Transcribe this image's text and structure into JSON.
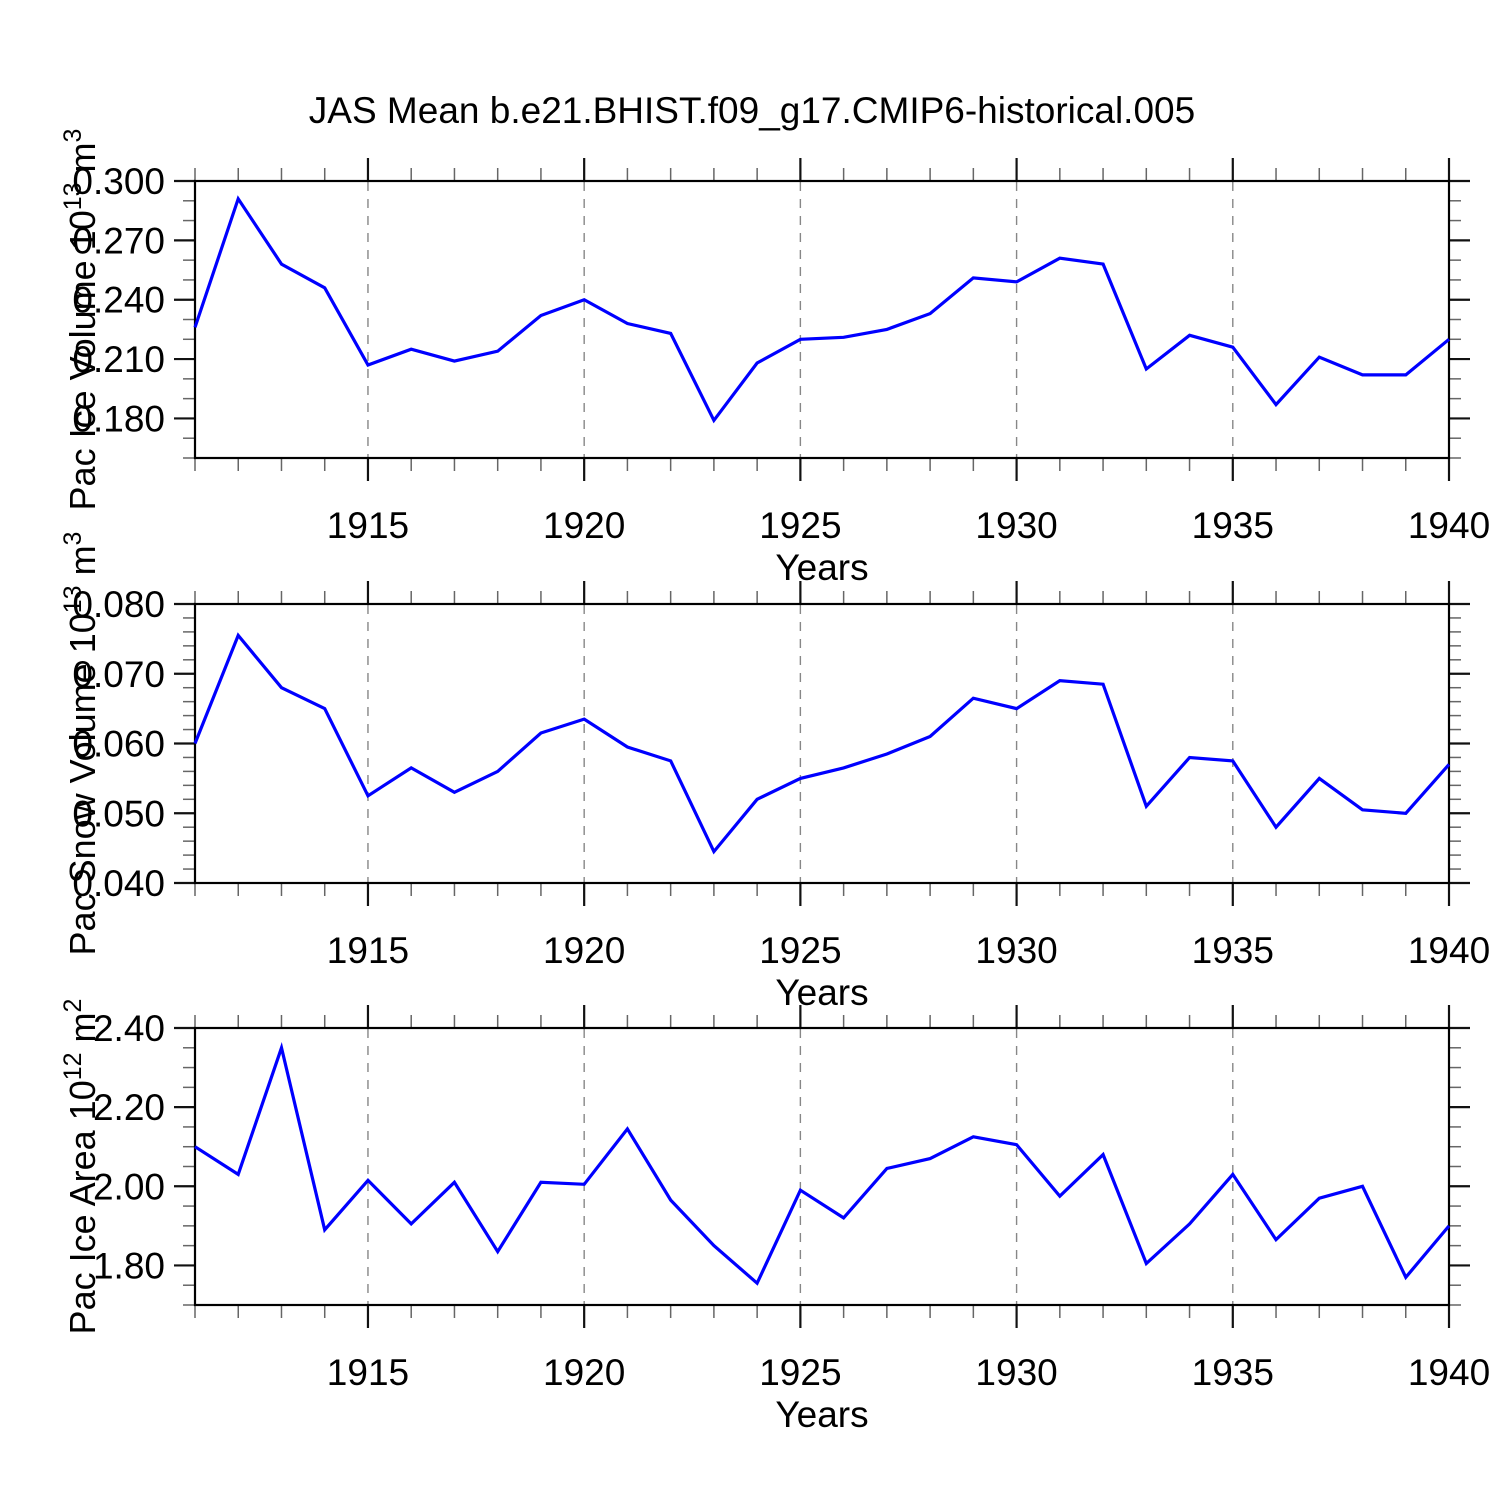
{
  "title": "JAS Mean b.e21.BHIST.f09_g17.CMIP6-historical.005",
  "figure": {
    "background": "#ffffff",
    "line_color": "#0000ff",
    "grid_color": "#878787",
    "frame_color": "#000000",
    "tick_major_color": "#111111",
    "tick_minor_color": "#666666"
  },
  "chart_data": [
    {
      "type": "line",
      "ylabel": "Pac Ice Volume 10^13 m^3",
      "ylabel_parts": [
        {
          "text": "Pac Ice Volume 10",
          "sup": false
        },
        {
          "text": "13",
          "sup": true
        },
        {
          "text": " m",
          "sup": false
        },
        {
          "text": "3",
          "sup": true
        }
      ],
      "xlabel": "Years",
      "x": [
        1911,
        1912,
        1913,
        1914,
        1915,
        1916,
        1917,
        1918,
        1919,
        1920,
        1921,
        1922,
        1923,
        1924,
        1925,
        1926,
        1927,
        1928,
        1929,
        1930,
        1931,
        1932,
        1933,
        1934,
        1935,
        1936,
        1937,
        1938,
        1939,
        1940
      ],
      "values": [
        0.226,
        0.291,
        0.258,
        0.246,
        0.207,
        0.215,
        0.209,
        0.214,
        0.232,
        0.24,
        0.228,
        0.223,
        0.179,
        0.208,
        0.22,
        0.221,
        0.225,
        0.233,
        0.251,
        0.249,
        0.261,
        0.258,
        0.205,
        0.222,
        0.216,
        0.187,
        0.211,
        0.202,
        0.202,
        0.22
      ],
      "xlim": [
        1911,
        1940
      ],
      "ylim": [
        0.16,
        0.3
      ],
      "yticks": [
        {
          "v": 0.3,
          "label": "0.300"
        },
        {
          "v": 0.27,
          "label": "0.270"
        },
        {
          "v": 0.24,
          "label": "0.240"
        },
        {
          "v": 0.21,
          "label": "0.210"
        },
        {
          "v": 0.18,
          "label": "0.180"
        }
      ],
      "yminor_step": 0.01,
      "xticks": [
        {
          "v": 1915,
          "label": "1915"
        },
        {
          "v": 1920,
          "label": "1920"
        },
        {
          "v": 1925,
          "label": "1925"
        },
        {
          "v": 1930,
          "label": "1930"
        },
        {
          "v": 1935,
          "label": "1935"
        },
        {
          "v": 1940,
          "label": "1940"
        }
      ],
      "xminor_step": 1,
      "grid_years": [
        1915,
        1920,
        1925,
        1930,
        1935
      ],
      "grid": "vertical-dashed",
      "legend": "none"
    },
    {
      "type": "line",
      "ylabel": "Pac Snow Volume 10^13 m^3",
      "ylabel_parts": [
        {
          "text": "Pac Snow Volume 10",
          "sup": false
        },
        {
          "text": "13",
          "sup": true
        },
        {
          "text": " m",
          "sup": false
        },
        {
          "text": "3",
          "sup": true
        }
      ],
      "xlabel": "Years",
      "x": [
        1911,
        1912,
        1913,
        1914,
        1915,
        1916,
        1917,
        1918,
        1919,
        1920,
        1921,
        1922,
        1923,
        1924,
        1925,
        1926,
        1927,
        1928,
        1929,
        1930,
        1931,
        1932,
        1933,
        1934,
        1935,
        1936,
        1937,
        1938,
        1939,
        1940
      ],
      "values": [
        0.06,
        0.0755,
        0.068,
        0.065,
        0.0525,
        0.0565,
        0.053,
        0.056,
        0.0615,
        0.0635,
        0.0595,
        0.0575,
        0.0445,
        0.052,
        0.055,
        0.0565,
        0.0585,
        0.061,
        0.0665,
        0.065,
        0.069,
        0.0685,
        0.051,
        0.058,
        0.0575,
        0.048,
        0.055,
        0.0505,
        0.05,
        0.057
      ],
      "xlim": [
        1911,
        1940
      ],
      "ylim": [
        0.04,
        0.08
      ],
      "yticks": [
        {
          "v": 0.08,
          "label": "0.080"
        },
        {
          "v": 0.07,
          "label": "0.070"
        },
        {
          "v": 0.06,
          "label": "0.060"
        },
        {
          "v": 0.05,
          "label": "0.050"
        },
        {
          "v": 0.04,
          "label": "0.040"
        }
      ],
      "yminor_step": 0.002,
      "xticks": [
        {
          "v": 1915,
          "label": "1915"
        },
        {
          "v": 1920,
          "label": "1920"
        },
        {
          "v": 1925,
          "label": "1925"
        },
        {
          "v": 1930,
          "label": "1930"
        },
        {
          "v": 1935,
          "label": "1935"
        },
        {
          "v": 1940,
          "label": "1940"
        }
      ],
      "xminor_step": 1,
      "grid_years": [
        1915,
        1920,
        1925,
        1930,
        1935
      ],
      "grid": "vertical-dashed",
      "legend": "none"
    },
    {
      "type": "line",
      "ylabel": "Pac Ice Area 10^12 m^2",
      "ylabel_parts": [
        {
          "text": "Pac Ice Area 10",
          "sup": false
        },
        {
          "text": "12",
          "sup": true
        },
        {
          "text": " m",
          "sup": false
        },
        {
          "text": "2",
          "sup": true
        }
      ],
      "xlabel": "Years",
      "x": [
        1911,
        1912,
        1913,
        1914,
        1915,
        1916,
        1917,
        1918,
        1919,
        1920,
        1921,
        1922,
        1923,
        1924,
        1925,
        1926,
        1927,
        1928,
        1929,
        1930,
        1931,
        1932,
        1933,
        1934,
        1935,
        1936,
        1937,
        1938,
        1939,
        1940
      ],
      "values": [
        2.1,
        2.03,
        2.35,
        1.89,
        2.015,
        1.905,
        2.01,
        1.835,
        2.01,
        2.005,
        2.145,
        1.965,
        1.85,
        1.755,
        1.99,
        1.92,
        2.045,
        2.07,
        2.125,
        2.105,
        1.975,
        2.08,
        1.805,
        1.905,
        2.03,
        1.865,
        1.97,
        2.0,
        1.77,
        1.9
      ],
      "xlim": [
        1911,
        1940
      ],
      "ylim": [
        1.7,
        2.4
      ],
      "yticks": [
        {
          "v": 2.4,
          "label": "2.40"
        },
        {
          "v": 2.2,
          "label": "2.20"
        },
        {
          "v": 2.0,
          "label": "2.00"
        },
        {
          "v": 1.8,
          "label": "1.80"
        }
      ],
      "yminor_step": 0.05,
      "xticks": [
        {
          "v": 1915,
          "label": "1915"
        },
        {
          "v": 1920,
          "label": "1920"
        },
        {
          "v": 1925,
          "label": "1925"
        },
        {
          "v": 1930,
          "label": "1930"
        },
        {
          "v": 1935,
          "label": "1935"
        },
        {
          "v": 1940,
          "label": "1940"
        }
      ],
      "xminor_step": 1,
      "grid_years": [
        1915,
        1920,
        1925,
        1930,
        1935
      ],
      "grid": "vertical-dashed",
      "legend": "none"
    }
  ]
}
